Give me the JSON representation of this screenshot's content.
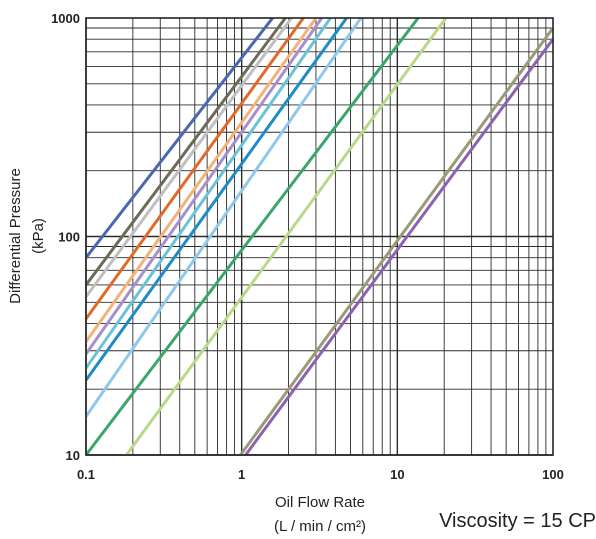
{
  "chart_data": {
    "type": "line",
    "title": "",
    "xlabel": "Oil Flow Rate",
    "xlabel_units": "(L / min / cm²)",
    "ylabel": "Differential Pressure",
    "ylabel_units": "(kPa)",
    "x_scale": "log",
    "y_scale": "log",
    "xlim": [
      0.1,
      100
    ],
    "ylim": [
      10,
      1000
    ],
    "x_ticks": [
      0.1,
      1,
      10,
      100
    ],
    "x_tick_labels": [
      "0.1",
      "1",
      "10",
      "100"
    ],
    "y_ticks": [
      10,
      100,
      1000
    ],
    "y_tick_labels": [
      "10",
      "100",
      "1000"
    ],
    "grid": true,
    "legend": "none",
    "annotation": "Viscosity = 15 CP",
    "series": [
      {
        "color": "#4a68b0",
        "x": [
          0.1,
          1.58
        ],
        "y": [
          80,
          1000
        ]
      },
      {
        "color": "#6e6a58",
        "x": [
          0.1,
          1.91
        ],
        "y": [
          60,
          1000
        ]
      },
      {
        "color": "#bfbfbf",
        "x": [
          0.1,
          2.09
        ],
        "y": [
          53,
          1000
        ]
      },
      {
        "color": "#e06a2c",
        "x": [
          0.1,
          2.49
        ],
        "y": [
          42,
          1000
        ]
      },
      {
        "color": "#f3b27a",
        "x": [
          0.1,
          3.0
        ],
        "y": [
          33,
          1000
        ]
      },
      {
        "color": "#a98fc9",
        "x": [
          0.1,
          3.27
        ],
        "y": [
          29,
          1000
        ]
      },
      {
        "color": "#6cc3d8",
        "x": [
          0.1,
          3.72
        ],
        "y": [
          25,
          1000
        ]
      },
      {
        "color": "#1f8bc7",
        "x": [
          0.1,
          4.72
        ],
        "y": [
          22,
          1000
        ]
      },
      {
        "color": "#8ec8ea",
        "x": [
          0.1,
          5.83
        ],
        "y": [
          15,
          1000
        ]
      },
      {
        "color": "#3aa66b",
        "x": [
          0.1,
          13.6
        ],
        "y": [
          10,
          1000
        ]
      },
      {
        "color": "#b8d98a",
        "x": [
          0.182,
          20.5
        ],
        "y": [
          10,
          1000
        ]
      },
      {
        "color": "#9a9978",
        "x": [
          0.982,
          100
        ],
        "y": [
          10,
          900
        ]
      },
      {
        "color": "#8c63b0",
        "x": [
          1.06,
          100
        ],
        "y": [
          10,
          800
        ]
      }
    ]
  }
}
